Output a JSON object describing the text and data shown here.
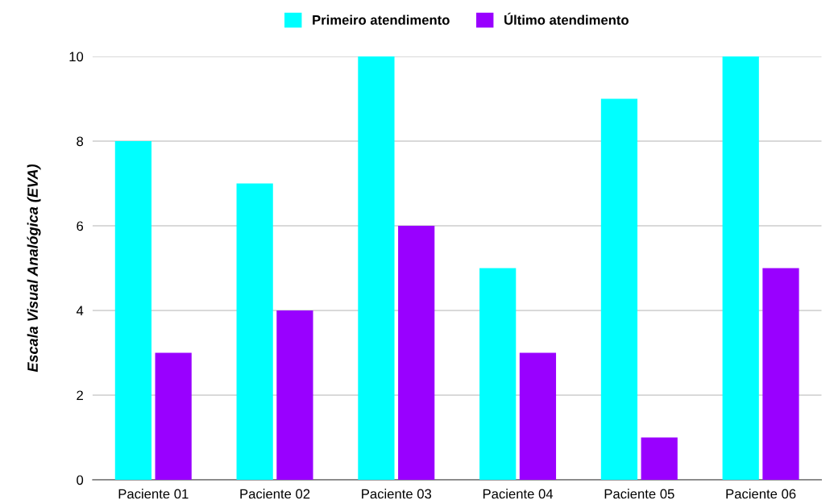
{
  "chart_data": {
    "type": "bar",
    "ylabel": "Escala Visual Analógica (EVA)",
    "categories": [
      "Paciente 01",
      "Paciente 02",
      "Paciente 03",
      "Paciente 04",
      "Paciente 05",
      "Paciente 06"
    ],
    "series": [
      {
        "name": "Primeiro atendimento",
        "color": "#00ffff",
        "values": [
          8,
          7,
          10,
          5,
          9,
          10
        ]
      },
      {
        "name": "Último atendimento",
        "color": "#9900ff",
        "values": [
          3,
          4,
          6,
          3,
          1,
          5
        ]
      }
    ],
    "ylim": [
      0,
      10
    ],
    "yticks": [
      0,
      2,
      4,
      6,
      8,
      10
    ],
    "grid": "y",
    "legend": "top"
  }
}
